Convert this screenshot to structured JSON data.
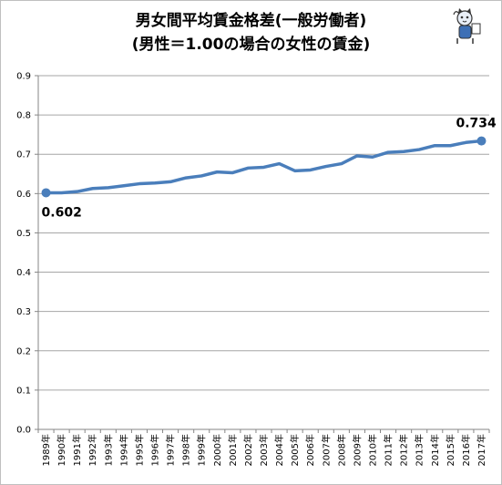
{
  "title_line1": "男女間平均賃金格差(一般労働者)",
  "title_line2": "(男性＝1.00の場合の女性の賃金)",
  "colors": {
    "line": "#4a7ebb",
    "grid": "#a6a6a6",
    "axis": "#868686"
  },
  "icons": {
    "mascot": "cat-mascot-icon"
  },
  "chart_data": {
    "type": "line",
    "title": "男女間平均賃金格差(一般労働者) (男性＝1.00の場合の女性の賃金)",
    "categories": [
      "1989年",
      "1990年",
      "1991年",
      "1992年",
      "1993年",
      "1994年",
      "1995年",
      "1996年",
      "1997年",
      "1998年",
      "1999年",
      "2000年",
      "2001年",
      "2002年",
      "2003年",
      "2004年",
      "2005年",
      "2006年",
      "2007年",
      "2008年",
      "2009年",
      "2010年",
      "2011年",
      "2012年",
      "2013年",
      "2014年",
      "2015年",
      "2016年",
      "2017年"
    ],
    "values": [
      0.602,
      0.602,
      0.605,
      0.613,
      0.615,
      0.62,
      0.625,
      0.627,
      0.63,
      0.64,
      0.645,
      0.655,
      0.653,
      0.665,
      0.667,
      0.676,
      0.658,
      0.66,
      0.669,
      0.676,
      0.696,
      0.693,
      0.705,
      0.707,
      0.712,
      0.722,
      0.722,
      0.73,
      0.734
    ],
    "ylim": [
      0,
      0.9
    ],
    "yticks": [
      "0.0",
      "0.1",
      "0.2",
      "0.3",
      "0.4",
      "0.5",
      "0.6",
      "0.7",
      "0.8",
      "0.9"
    ],
    "grid": true,
    "data_labels": [
      {
        "index": 0,
        "text": "0.602"
      },
      {
        "index": 28,
        "text": "0.734"
      }
    ]
  }
}
